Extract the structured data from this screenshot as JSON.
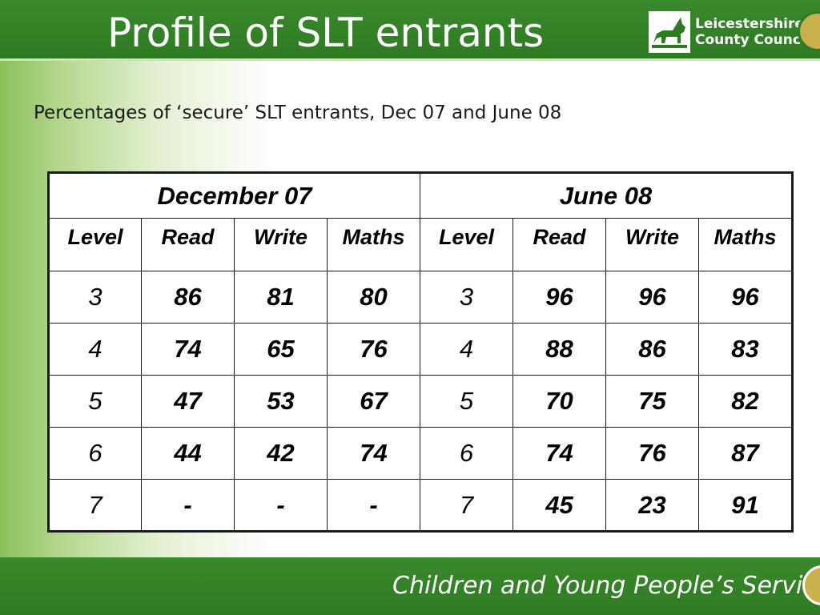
{
  "header": {
    "title": "Profile of SLT entrants",
    "logo": {
      "icon": "fox-logo-icon",
      "line1": "Leicestershire",
      "line2": "County Council"
    }
  },
  "subtitle": "Percentages of ‘secure’ SLT entrants, Dec 07 and June 08",
  "table": {
    "groups": [
      "December 07",
      "June 08"
    ],
    "columns": [
      "Level",
      "Read",
      "Write",
      "Maths",
      "Level",
      "Read",
      "Write",
      "Maths"
    ],
    "rows": [
      [
        "3",
        "86",
        "81",
        "80",
        "3",
        "96",
        "96",
        "96"
      ],
      [
        "4",
        "74",
        "65",
        "76",
        "4",
        "88",
        "86",
        "83"
      ],
      [
        "5",
        "47",
        "53",
        "67",
        "5",
        "70",
        "75",
        "82"
      ],
      [
        "6",
        "44",
        "42",
        "74",
        "6",
        "74",
        "76",
        "87"
      ],
      [
        "7",
        "-",
        "-",
        "-",
        "7",
        "45",
        "23",
        "91"
      ]
    ]
  },
  "footer": {
    "text": "Children and Young People’s Service"
  }
}
